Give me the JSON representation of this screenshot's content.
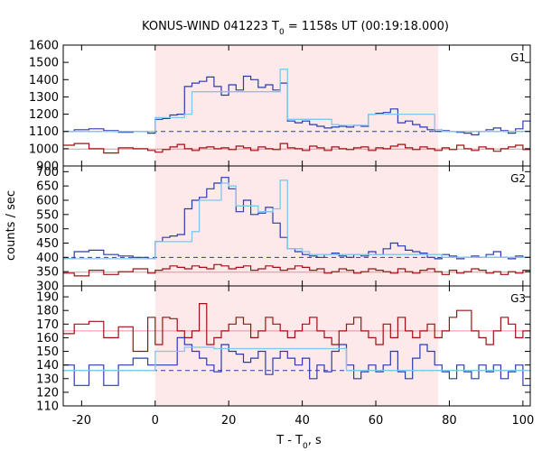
{
  "chart_data": {
    "type": "line",
    "title": {
      "prefix": "KONUS-WIND 041223 T",
      "sub": "0",
      "suffix": " = 1158s UT (00:19:18.000)"
    },
    "xlabel": {
      "prefix": "T - T",
      "sub": "0",
      "suffix": ", s"
    },
    "ylabel": "counts / sec",
    "xlim": [
      -25,
      102
    ],
    "xticks": [
      -20,
      0,
      20,
      40,
      60,
      80,
      100
    ],
    "shaded_interval": [
      0,
      77
    ],
    "colors": {
      "shade": "#fde8ea",
      "signal": "#2a3bb0",
      "background": "#a01010",
      "model": "#7ec8ee",
      "bg_fit": "#f08aa2",
      "baseline": "#2a3bb0"
    },
    "panels": [
      {
        "label": "G1",
        "ylim": [
          900,
          1600
        ],
        "yticks": [
          900,
          1000,
          1100,
          1200,
          1300,
          1400,
          1500,
          1600
        ],
        "baseline": 1100,
        "bg_level": 998,
        "signal": {
          "x": [
            -25,
            -22,
            -18,
            -14,
            -10,
            -6,
            -2,
            0,
            2,
            4,
            6,
            8,
            10,
            12,
            14,
            16,
            18,
            20,
            22,
            24,
            26,
            28,
            30,
            32,
            34,
            36,
            38,
            40,
            42,
            44,
            46,
            48,
            50,
            52,
            54,
            56,
            58,
            60,
            62,
            64,
            66,
            68,
            70,
            72,
            74,
            76,
            78,
            80,
            82,
            84,
            86,
            88,
            90,
            92,
            94,
            96,
            98,
            100,
            102
          ],
          "y": [
            1100,
            1110,
            1115,
            1105,
            1095,
            1100,
            1090,
            1170,
            1175,
            1195,
            1200,
            1360,
            1380,
            1390,
            1415,
            1360,
            1310,
            1370,
            1340,
            1420,
            1400,
            1355,
            1370,
            1340,
            1380,
            1160,
            1150,
            1160,
            1140,
            1130,
            1120,
            1125,
            1130,
            1125,
            1135,
            1130,
            1200,
            1205,
            1210,
            1230,
            1150,
            1160,
            1140,
            1125,
            1110,
            1100,
            1105,
            1100,
            1095,
            1090,
            1080,
            1100,
            1110,
            1120,
            1105,
            1090,
            1115,
            1160,
            1160
          ]
        },
        "background": {
          "x": [
            -25,
            -22,
            -18,
            -14,
            -10,
            -6,
            -2,
            0,
            2,
            4,
            6,
            8,
            10,
            12,
            14,
            16,
            18,
            20,
            22,
            24,
            26,
            28,
            30,
            32,
            34,
            36,
            38,
            40,
            42,
            44,
            46,
            48,
            50,
            52,
            54,
            56,
            58,
            60,
            62,
            64,
            66,
            68,
            70,
            72,
            74,
            76,
            78,
            80,
            82,
            84,
            86,
            88,
            90,
            92,
            94,
            96,
            98,
            100,
            102
          ],
          "y": [
            1020,
            1030,
            1000,
            975,
            1005,
            1000,
            990,
            980,
            995,
            1010,
            1025,
            1000,
            990,
            1005,
            1010,
            1000,
            1005,
            995,
            1015,
            1005,
            990,
            1010,
            1000,
            995,
            1030,
            1005,
            1000,
            990,
            1015,
            1005,
            990,
            1010,
            1000,
            995,
            1005,
            1010,
            990,
            1005,
            1000,
            1015,
            1025,
            1005,
            995,
            1010,
            1000,
            990,
            1005,
            995,
            1020,
            1000,
            990,
            1010,
            1000,
            985,
            1000,
            1010,
            1020,
            995,
            995
          ]
        },
        "model": {
          "x": [
            -25,
            0,
            8,
            10,
            34,
            36,
            48,
            50,
            56,
            58,
            74,
            76,
            78,
            102
          ],
          "y": [
            1100,
            1180,
            1200,
            1330,
            1460,
            1170,
            1140,
            1135,
            1135,
            1200,
            1200,
            1110,
            1100,
            1100
          ]
        }
      },
      {
        "label": "G2",
        "ylim": [
          300,
          720
        ],
        "yticks": [
          300,
          350,
          400,
          450,
          500,
          550,
          600,
          650,
          700
        ],
        "baseline": 400,
        "bg_level": 348,
        "signal": {
          "x": [
            -25,
            -22,
            -18,
            -14,
            -10,
            -6,
            -2,
            0,
            2,
            4,
            6,
            8,
            10,
            12,
            14,
            16,
            18,
            20,
            22,
            24,
            26,
            28,
            30,
            32,
            34,
            36,
            38,
            40,
            42,
            44,
            46,
            48,
            50,
            52,
            54,
            56,
            58,
            60,
            62,
            64,
            66,
            68,
            70,
            72,
            74,
            76,
            78,
            80,
            82,
            84,
            86,
            88,
            90,
            92,
            94,
            96,
            98,
            100,
            102
          ],
          "y": [
            395,
            420,
            425,
            410,
            405,
            400,
            395,
            455,
            470,
            475,
            480,
            570,
            600,
            610,
            640,
            660,
            680,
            640,
            560,
            600,
            550,
            555,
            575,
            520,
            470,
            430,
            420,
            410,
            405,
            400,
            410,
            415,
            405,
            400,
            410,
            405,
            420,
            410,
            430,
            450,
            440,
            425,
            420,
            415,
            400,
            395,
            410,
            405,
            395,
            400,
            405,
            400,
            410,
            420,
            400,
            395,
            405,
            400,
            400
          ]
        },
        "background": {
          "x": [
            -25,
            -22,
            -18,
            -14,
            -10,
            -6,
            -2,
            0,
            2,
            4,
            6,
            8,
            10,
            12,
            14,
            16,
            18,
            20,
            22,
            24,
            26,
            28,
            30,
            32,
            34,
            36,
            38,
            40,
            42,
            44,
            46,
            48,
            50,
            52,
            54,
            56,
            58,
            60,
            62,
            64,
            66,
            68,
            70,
            72,
            74,
            76,
            78,
            80,
            82,
            84,
            86,
            88,
            90,
            92,
            94,
            96,
            98,
            100,
            102
          ],
          "y": [
            345,
            335,
            355,
            340,
            350,
            360,
            345,
            355,
            360,
            370,
            365,
            360,
            370,
            365,
            360,
            375,
            370,
            360,
            365,
            370,
            355,
            360,
            370,
            365,
            355,
            360,
            370,
            365,
            355,
            360,
            345,
            350,
            360,
            355,
            345,
            350,
            360,
            355,
            350,
            345,
            360,
            350,
            345,
            355,
            360,
            350,
            340,
            355,
            345,
            350,
            360,
            355,
            345,
            350,
            340,
            350,
            345,
            355,
            355
          ]
        },
        "model": {
          "x": [
            -25,
            0,
            10,
            12,
            18,
            20,
            22,
            26,
            28,
            32,
            34,
            36,
            40,
            42,
            76,
            78,
            102
          ],
          "y": [
            395,
            455,
            490,
            600,
            660,
            650,
            580,
            580,
            560,
            570,
            670,
            430,
            420,
            410,
            410,
            400,
            400
          ]
        }
      },
      {
        "label": "G3",
        "ylim": [
          110,
          198
        ],
        "yticks": [
          110,
          120,
          130,
          140,
          150,
          160,
          170,
          180,
          190
        ],
        "baseline": 136,
        "bg_level": 165,
        "signal": {
          "x": [
            -25,
            -22,
            -18,
            -14,
            -10,
            -6,
            -2,
            0,
            2,
            4,
            6,
            8,
            10,
            12,
            14,
            16,
            18,
            20,
            22,
            24,
            26,
            28,
            30,
            32,
            34,
            36,
            38,
            40,
            42,
            44,
            46,
            48,
            50,
            52,
            54,
            56,
            58,
            60,
            62,
            64,
            66,
            68,
            70,
            72,
            74,
            76,
            78,
            80,
            82,
            84,
            86,
            88,
            90,
            92,
            94,
            96,
            98,
            100,
            102
          ],
          "y": [
            140,
            125,
            140,
            125,
            140,
            145,
            140,
            140,
            140,
            140,
            160,
            155,
            150,
            145,
            140,
            135,
            155,
            150,
            148,
            142,
            145,
            150,
            133,
            145,
            150,
            145,
            140,
            145,
            130,
            140,
            135,
            150,
            155,
            140,
            130,
            135,
            140,
            135,
            140,
            150,
            135,
            130,
            145,
            155,
            150,
            140,
            135,
            130,
            140,
            135,
            130,
            140,
            135,
            140,
            130,
            135,
            140,
            125,
            125
          ]
        },
        "background": {
          "x": [
            -25,
            -22,
            -18,
            -14,
            -10,
            -6,
            -2,
            0,
            2,
            4,
            6,
            8,
            10,
            12,
            14,
            16,
            18,
            20,
            22,
            24,
            26,
            28,
            30,
            32,
            34,
            36,
            38,
            40,
            42,
            44,
            46,
            48,
            50,
            52,
            54,
            56,
            58,
            60,
            62,
            64,
            66,
            68,
            70,
            72,
            74,
            76,
            78,
            80,
            82,
            84,
            86,
            88,
            90,
            92,
            94,
            96,
            98,
            100,
            102
          ],
          "y": [
            163,
            170,
            172,
            160,
            168,
            150,
            175,
            155,
            175,
            174,
            165,
            160,
            165,
            185,
            155,
            160,
            165,
            170,
            175,
            170,
            160,
            165,
            175,
            170,
            165,
            160,
            165,
            170,
            175,
            165,
            160,
            155,
            165,
            170,
            175,
            165,
            160,
            155,
            170,
            160,
            175,
            165,
            160,
            165,
            170,
            160,
            165,
            175,
            180,
            180,
            165,
            160,
            155,
            165,
            175,
            170,
            160,
            165,
            165
          ]
        },
        "model": {
          "x": [
            -25,
            0,
            6,
            8,
            16,
            18,
            50,
            52,
            102
          ],
          "y": [
            136,
            150,
            150,
            153,
            152,
            152,
            152,
            136,
            136
          ]
        }
      }
    ]
  }
}
